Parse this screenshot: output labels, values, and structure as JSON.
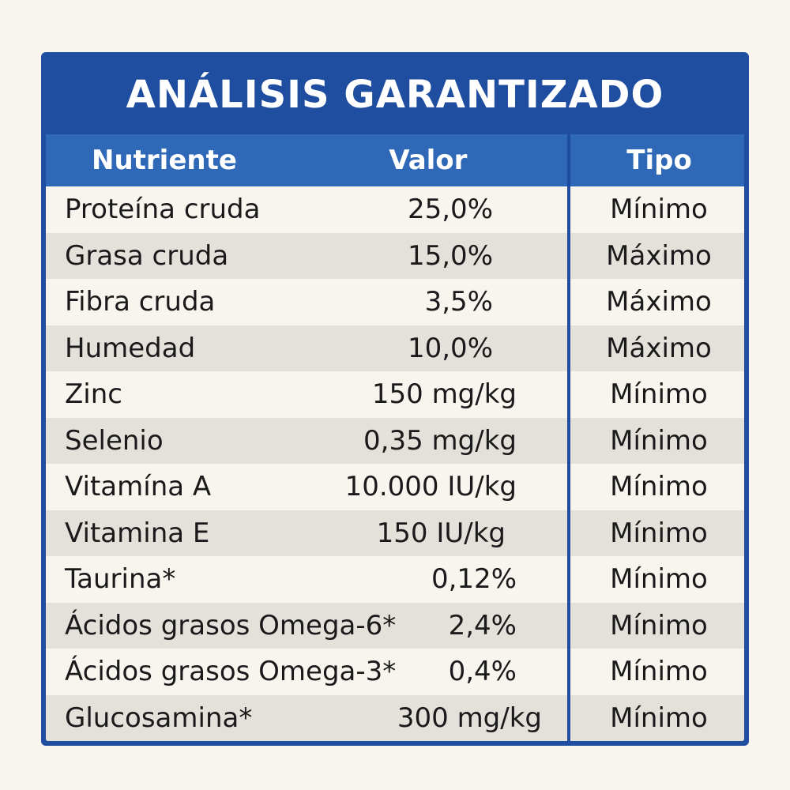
{
  "title": "ANÁLISIS GARANTIZADO",
  "headers": {
    "nutrient": "Nutriente",
    "value": "Valor",
    "type": "Tipo"
  },
  "rows": [
    {
      "nutrient": "Proteína cruda",
      "value": "25,0%",
      "type": "Mínimo"
    },
    {
      "nutrient": "Grasa cruda",
      "value": "15,0%",
      "type": "Máximo"
    },
    {
      "nutrient": "Fibra cruda",
      "value": "3,5%",
      "type": "Máximo"
    },
    {
      "nutrient": "Humedad",
      "value": "10,0%",
      "type": "Máximo"
    },
    {
      "nutrient": "Zinc",
      "value": "150 mg/kg",
      "type": "Mínimo"
    },
    {
      "nutrient": "Selenio",
      "value": "0,35 mg/kg",
      "type": "Mínimo"
    },
    {
      "nutrient": "Vitamína A",
      "value": "10.000 IU/kg",
      "type": "Mínimo"
    },
    {
      "nutrient": "Vitamina E",
      "value": "150 IU/kg",
      "type": "Mínimo"
    },
    {
      "nutrient": "Taurina*",
      "value": "0,12%",
      "type": "Mínimo"
    },
    {
      "nutrient": "Ácidos grasos Omega-6*",
      "value": "2,4%",
      "type": "Mínimo"
    },
    {
      "nutrient": "Ácidos grasos Omega-3*",
      "value": "0,4%",
      "type": "Mínimo"
    },
    {
      "nutrient": "Glucosamina*",
      "value": "300 mg/kg",
      "type": "Mínimo"
    }
  ],
  "colors": {
    "frame": "#1f4d9f",
    "header": "#2e68b6",
    "row_light": "#f8f5ef",
    "row_alt": "#e4e1db"
  }
}
